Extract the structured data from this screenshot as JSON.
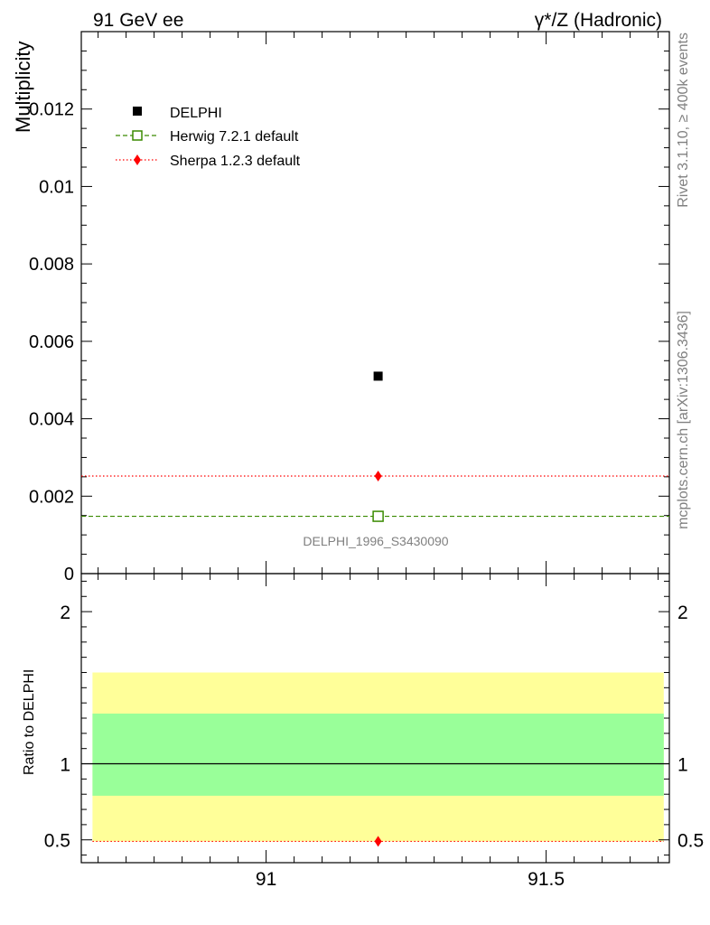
{
  "header": {
    "left": "91 GeV ee",
    "right": "γ*/Z (Hadronic)"
  },
  "side_labels": {
    "rivet": "Rivet 3.1.10, ≥ 400k events",
    "mcplots": "mcplots.cern.ch [arXiv:1306.3436]"
  },
  "analysis_id": "DELPHI_1996_S3430090",
  "colors": {
    "delphi": "#000000",
    "herwig": "#3a8a00",
    "sherpa": "#ff0000",
    "band_outer": "#ffff99",
    "band_inner": "#99ff99",
    "axis": "#000000",
    "watermark": "#808080"
  },
  "chart_data": [
    {
      "type": "scatter",
      "ylabel": "Multiplicity",
      "ylim": [
        0,
        0.014
      ],
      "xlim": [
        90.67,
        91.72
      ],
      "yticks": [
        0,
        0.002,
        0.004,
        0.006,
        0.008,
        0.01,
        0.012
      ],
      "ytick_labels": [
        "0",
        "0.002",
        "0.004",
        "0.006",
        "0.008",
        "0.01",
        "0.012"
      ],
      "legend": {
        "placement": "top-left"
      },
      "series": [
        {
          "name": "DELPHI",
          "style": "marker-square",
          "x": [
            91.2
          ],
          "y": [
            0.0051
          ]
        },
        {
          "name": "Herwig 7.2.1 default",
          "style": "dashed-open-square",
          "x": [
            91.2
          ],
          "y": [
            0.00148
          ],
          "xrange": [
            90.67,
            91.72
          ]
        },
        {
          "name": "Sherpa 1.2.3 default",
          "style": "dotted-diamond",
          "x": [
            91.2
          ],
          "y": [
            0.00252
          ],
          "xrange": [
            90.67,
            91.72
          ]
        }
      ]
    },
    {
      "type": "line",
      "ylabel": "Ratio to DELPHI",
      "ylim": [
        0.35,
        2.25
      ],
      "xlim": [
        90.67,
        91.72
      ],
      "yticks": [
        0.5,
        1,
        2
      ],
      "ytick_labels": [
        "0.5",
        "1",
        "2"
      ],
      "xticks": [
        91,
        91.5
      ],
      "xtick_labels": [
        "91",
        "91.5"
      ],
      "bands": [
        {
          "kind": "outer",
          "range": [
            0.49,
            1.6
          ],
          "xrange": [
            90.69,
            91.71
          ]
        },
        {
          "kind": "inner",
          "range": [
            0.79,
            1.33
          ],
          "xrange": [
            90.69,
            91.71
          ]
        }
      ],
      "series": [
        {
          "name": "Sherpa 1.2.3 default",
          "x": [
            91.2
          ],
          "y": [
            0.49
          ]
        }
      ]
    }
  ]
}
